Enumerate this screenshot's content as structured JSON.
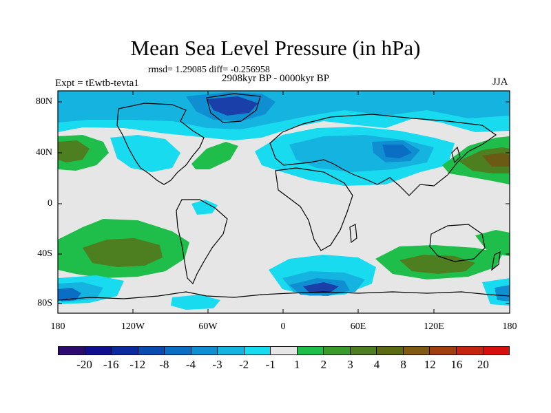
{
  "title": "Mean Sea Level Pressure (in hPa)",
  "stats": "rmsd= 1.29085 diff= -0.256958",
  "period": "2908kyr BP - 0000kyr BP",
  "experiment": "Expt = tEwtb-tevta1",
  "season": "JJA",
  "lat_labels": [
    "80N",
    "40N",
    "0",
    "40S",
    "80S"
  ],
  "lon_labels": [
    "180",
    "120W",
    "60W",
    "0",
    "60E",
    "120E",
    "180"
  ],
  "colorbar": {
    "colors": [
      "#2d0a6e",
      "#120e90",
      "#0a2a9e",
      "#0a4bb0",
      "#0a6fc4",
      "#0f8fd2",
      "#15b4e0",
      "#19dbf0",
      "#e6e6e6",
      "#1fbd4a",
      "#3a9a2a",
      "#4d7e1f",
      "#5c6a12",
      "#7e5a12",
      "#a04010",
      "#c42510",
      "#d60f0f"
    ],
    "labels": [
      "-20",
      "-16",
      "-12",
      "-8",
      "-4",
      "-3",
      "-2",
      "-1",
      "1",
      "2",
      "3",
      "4",
      "8",
      "12",
      "16",
      "20"
    ]
  },
  "field_colors": {
    "neutral": "#e6e6e6",
    "neg1": "#19dbf0",
    "neg2": "#15b4e0",
    "neg3": "#0f8fd2",
    "neg4": "#0a6fc4",
    "neg8": "#1a3fa8",
    "pos1": "#1fbd4a",
    "pos3": "#4d7e1f",
    "pos4": "#6b5a14"
  }
}
